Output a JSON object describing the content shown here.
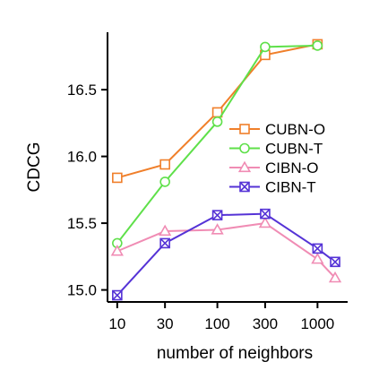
{
  "chart_data": {
    "type": "line",
    "title": "",
    "xlabel": "number of neighbors",
    "ylabel": "CDCG",
    "x_scale": "log",
    "x_tick_labels": [
      "10",
      "30",
      "100",
      "300",
      "1000"
    ],
    "x_ticks": [
      10,
      30,
      100,
      300,
      1000
    ],
    "y_ticks": [
      15.0,
      15.5,
      16.0,
      16.5
    ],
    "y_tick_labels": [
      "15.0",
      "15.5",
      "16.0",
      "16.5"
    ],
    "ylim": [
      14.91,
      16.93
    ],
    "xlim": [
      8,
      2000
    ],
    "grid": false,
    "legend_position": "center-right",
    "series": [
      {
        "name": "CUBN-O",
        "color": "#f07f2a",
        "marker": "square",
        "x": [
          10,
          30,
          100,
          300,
          1000
        ],
        "y": [
          15.84,
          15.94,
          16.33,
          16.76,
          16.84
        ]
      },
      {
        "name": "CUBN-T",
        "color": "#5fe04a",
        "marker": "circle",
        "x": [
          10,
          30,
          100,
          300,
          1000
        ],
        "y": [
          15.35,
          15.81,
          16.26,
          16.82,
          16.83
        ]
      },
      {
        "name": "CIBN-O",
        "color": "#f08cb4",
        "marker": "triangle",
        "x": [
          10,
          30,
          100,
          300,
          1000,
          1500
        ],
        "y": [
          15.29,
          15.44,
          15.45,
          15.5,
          15.23,
          15.09
        ]
      },
      {
        "name": "CIBN-T",
        "color": "#5533d6",
        "marker": "boxx",
        "x": [
          10,
          30,
          100,
          300,
          1000,
          1500
        ],
        "y": [
          14.96,
          15.35,
          15.56,
          15.57,
          15.31,
          15.21
        ]
      }
    ]
  }
}
